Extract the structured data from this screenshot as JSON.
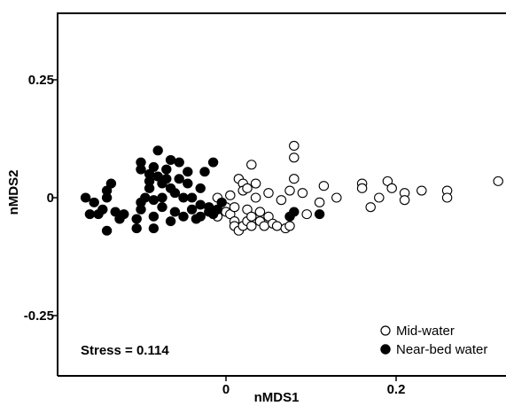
{
  "chart_data": {
    "type": "scatter",
    "title": "",
    "xlabel": "nMDS1",
    "ylabel": "nMDS2",
    "xlim": [
      -0.205,
      0.34
    ],
    "ylim": [
      -0.38,
      0.39
    ],
    "x_ticks": [
      0,
      0.2
    ],
    "x_tick_labels": [
      "0",
      "0.2"
    ],
    "y_ticks": [
      0.25,
      0,
      -0.25
    ],
    "y_tick_labels": [
      "0.25",
      "0",
      "-0.25"
    ],
    "grid": false,
    "legend_position": "bottom-right",
    "annotation": "Stress = 0.114",
    "series": [
      {
        "name": "Mid-water",
        "marker": "open-circle",
        "color": "#000000",
        "points": [
          [
            -0.01,
            0.0
          ],
          [
            -0.01,
            -0.04
          ],
          [
            0.0,
            -0.02
          ],
          [
            0.0,
            -0.03
          ],
          [
            0.005,
            0.005
          ],
          [
            0.005,
            -0.035
          ],
          [
            0.01,
            -0.05
          ],
          [
            0.01,
            -0.06
          ],
          [
            0.01,
            -0.02
          ],
          [
            0.015,
            -0.07
          ],
          [
            0.015,
            0.04
          ],
          [
            0.02,
            0.03
          ],
          [
            0.02,
            0.015
          ],
          [
            0.02,
            -0.06
          ],
          [
            0.025,
            -0.05
          ],
          [
            0.025,
            -0.025
          ],
          [
            0.025,
            0.02
          ],
          [
            0.03,
            0.07
          ],
          [
            0.03,
            -0.04
          ],
          [
            0.03,
            -0.06
          ],
          [
            0.035,
            0.0
          ],
          [
            0.035,
            0.03
          ],
          [
            0.04,
            -0.05
          ],
          [
            0.04,
            -0.03
          ],
          [
            0.045,
            -0.06
          ],
          [
            0.05,
            0.01
          ],
          [
            0.05,
            -0.04
          ],
          [
            0.055,
            -0.055
          ],
          [
            0.06,
            -0.06
          ],
          [
            0.065,
            -0.005
          ],
          [
            0.07,
            -0.065
          ],
          [
            0.075,
            -0.06
          ],
          [
            0.075,
            0.015
          ],
          [
            0.08,
            0.11
          ],
          [
            0.08,
            0.085
          ],
          [
            0.08,
            0.04
          ],
          [
            0.09,
            0.01
          ],
          [
            0.095,
            -0.035
          ],
          [
            0.11,
            -0.01
          ],
          [
            0.115,
            0.025
          ],
          [
            0.13,
            0.0
          ],
          [
            0.16,
            0.03
          ],
          [
            0.16,
            0.02
          ],
          [
            0.17,
            -0.02
          ],
          [
            0.18,
            0.0
          ],
          [
            0.19,
            0.035
          ],
          [
            0.195,
            0.02
          ],
          [
            0.21,
            0.01
          ],
          [
            0.21,
            -0.005
          ],
          [
            0.23,
            0.015
          ],
          [
            0.26,
            0.015
          ],
          [
            0.26,
            0.0
          ],
          [
            0.32,
            0.035
          ]
        ]
      },
      {
        "name": "Near-bed water",
        "marker": "filled-circle",
        "color": "#000000",
        "points": [
          [
            -0.165,
            0.0
          ],
          [
            -0.16,
            -0.035
          ],
          [
            -0.155,
            -0.01
          ],
          [
            -0.15,
            -0.035
          ],
          [
            -0.145,
            -0.025
          ],
          [
            -0.14,
            -0.07
          ],
          [
            -0.14,
            0.0
          ],
          [
            -0.14,
            0.015
          ],
          [
            -0.135,
            0.03
          ],
          [
            -0.13,
            -0.03
          ],
          [
            -0.125,
            -0.045
          ],
          [
            -0.12,
            -0.035
          ],
          [
            -0.105,
            -0.045
          ],
          [
            -0.105,
            -0.065
          ],
          [
            -0.1,
            -0.025
          ],
          [
            -0.1,
            0.075
          ],
          [
            -0.1,
            0.06
          ],
          [
            -0.1,
            -0.01
          ],
          [
            -0.095,
            0.0
          ],
          [
            -0.09,
            0.05
          ],
          [
            -0.09,
            0.035
          ],
          [
            -0.09,
            0.02
          ],
          [
            -0.085,
            -0.005
          ],
          [
            -0.085,
            -0.04
          ],
          [
            -0.085,
            -0.065
          ],
          [
            -0.085,
            0.065
          ],
          [
            -0.08,
            0.1
          ],
          [
            -0.08,
            0.045
          ],
          [
            -0.075,
            0.03
          ],
          [
            -0.075,
            0.0
          ],
          [
            -0.075,
            -0.02
          ],
          [
            -0.07,
            0.04
          ],
          [
            -0.07,
            0.06
          ],
          [
            -0.065,
            0.08
          ],
          [
            -0.065,
            0.02
          ],
          [
            -0.065,
            -0.05
          ],
          [
            -0.06,
            0.01
          ],
          [
            -0.06,
            -0.03
          ],
          [
            -0.055,
            0.075
          ],
          [
            -0.055,
            0.04
          ],
          [
            -0.05,
            -0.04
          ],
          [
            -0.05,
            0.0
          ],
          [
            -0.045,
            0.055
          ],
          [
            -0.045,
            0.03
          ],
          [
            -0.04,
            0.0
          ],
          [
            -0.04,
            -0.025
          ],
          [
            -0.035,
            -0.045
          ],
          [
            -0.03,
            0.02
          ],
          [
            -0.03,
            -0.015
          ],
          [
            -0.025,
            0.055
          ],
          [
            -0.02,
            -0.02
          ],
          [
            -0.015,
            0.075
          ],
          [
            -0.015,
            -0.035
          ],
          [
            -0.01,
            -0.025
          ],
          [
            -0.005,
            -0.01
          ],
          [
            -0.02,
            -0.03
          ],
          [
            0.075,
            -0.04
          ],
          [
            0.08,
            -0.03
          ],
          [
            0.11,
            -0.035
          ],
          [
            -0.03,
            -0.04
          ]
        ]
      }
    ]
  }
}
